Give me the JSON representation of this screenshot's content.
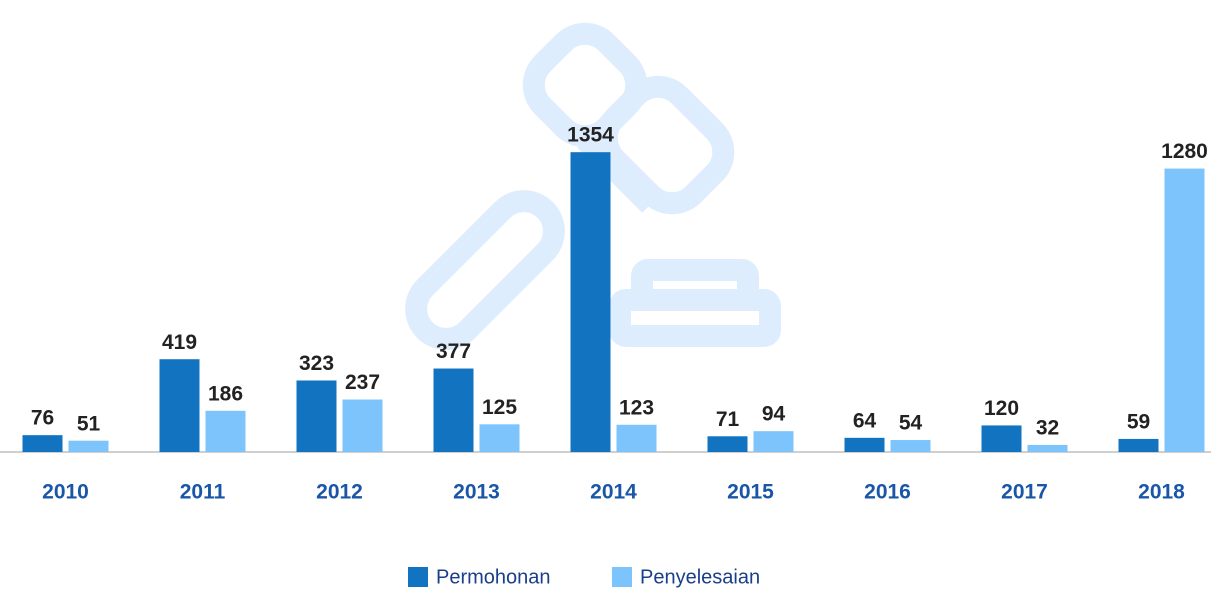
{
  "chart_data": {
    "type": "bar",
    "categories": [
      "2010",
      "2011",
      "2012",
      "2013",
      "2014",
      "2015",
      "2016",
      "2017",
      "2018"
    ],
    "series": [
      {
        "name": "Permohonan",
        "color": "#1273c0",
        "values": [
          76,
          419,
          323,
          377,
          1354,
          71,
          64,
          120,
          59
        ]
      },
      {
        "name": "Penyelesaian",
        "color": "#7cc4fb",
        "values": [
          51,
          186,
          237,
          125,
          123,
          94,
          54,
          32,
          1280
        ]
      }
    ],
    "ylim": [
      0,
      1400
    ]
  }
}
